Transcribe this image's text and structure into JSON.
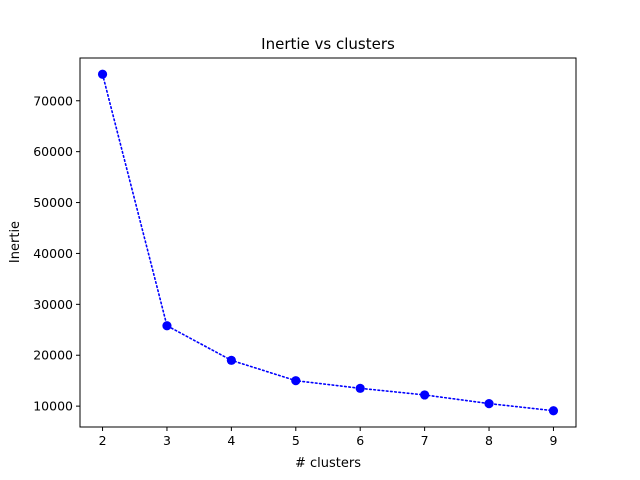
{
  "chart_data": {
    "type": "line",
    "title": "Inertie vs clusters",
    "xlabel": "# clusters",
    "ylabel": "Inertie",
    "x": [
      2,
      3,
      4,
      5,
      6,
      7,
      8,
      9
    ],
    "series": [
      {
        "values": [
          75200,
          25800,
          19000,
          15000,
          13500,
          12200,
          10500,
          9100
        ],
        "color": "#0000ff",
        "line_style": "dotted",
        "marker": "circle"
      }
    ],
    "xlim": [
      1.65,
      9.35
    ],
    "ylim": [
      5900,
      78400
    ],
    "xticks": [
      2,
      3,
      4,
      5,
      6,
      7,
      8,
      9
    ],
    "yticks": [
      10000,
      20000,
      30000,
      40000,
      50000,
      60000,
      70000
    ],
    "grid": false
  }
}
